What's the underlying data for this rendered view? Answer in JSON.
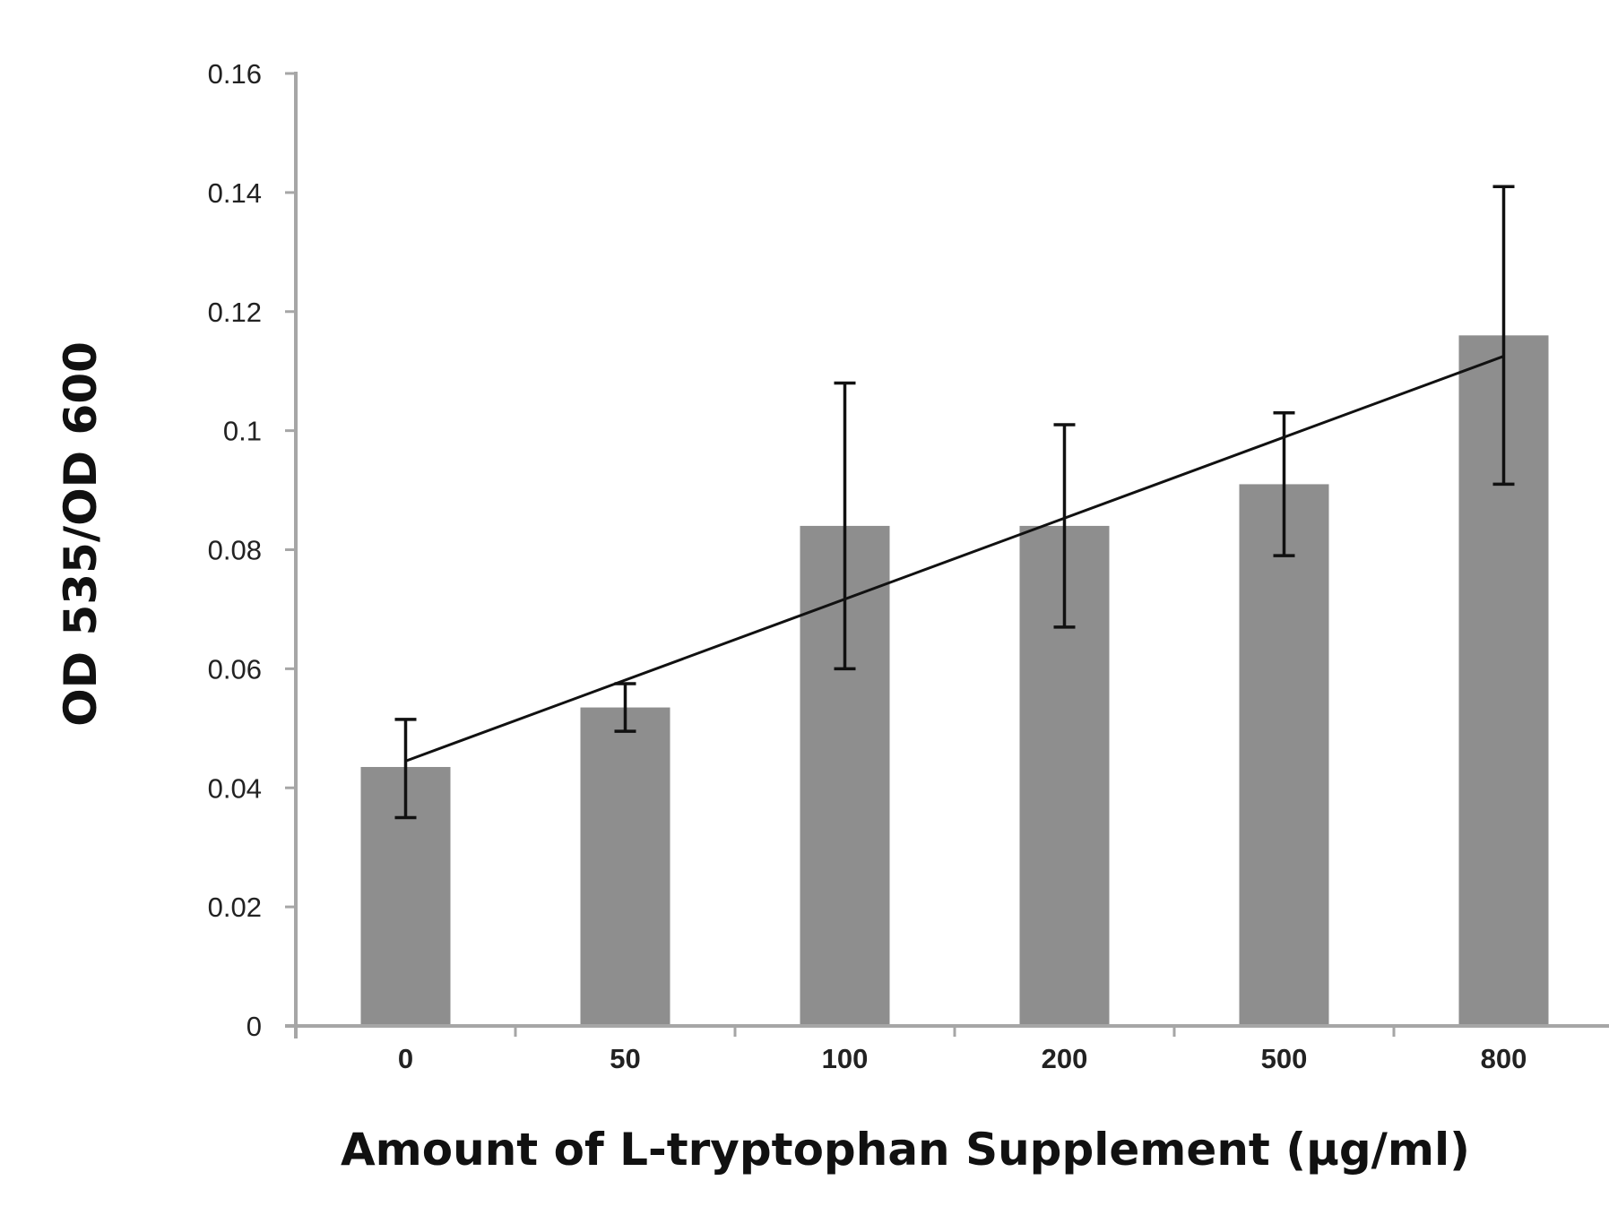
{
  "chart_data": {
    "type": "bar",
    "title": "",
    "xlabel": "Amount of L-tryptophan Supplement (µg/ml)",
    "ylabel": "OD 535/OD 600",
    "categories": [
      "0",
      "50",
      "100",
      "200",
      "500",
      "800"
    ],
    "values": [
      0.0435,
      0.0535,
      0.084,
      0.084,
      0.091,
      0.116
    ],
    "error_bars": [
      {
        "low": 0.035,
        "high": 0.0515
      },
      {
        "low": 0.0495,
        "high": 0.0575
      },
      {
        "low": 0.06,
        "high": 0.108
      },
      {
        "low": 0.067,
        "high": 0.101
      },
      {
        "low": 0.079,
        "high": 0.103
      },
      {
        "low": 0.091,
        "high": 0.141
      }
    ],
    "trendline": {
      "start": 0.0445,
      "end": 0.1125
    },
    "ylim": [
      0,
      0.16
    ],
    "yticks": [
      "0",
      "0.02",
      "0.04",
      "0.06",
      "0.08",
      "0.1",
      "0.12",
      "0.14",
      "0.16"
    ],
    "ytick_values": [
      0,
      0.02,
      0.04,
      0.06,
      0.08,
      0.1,
      0.12,
      0.14,
      0.16
    ],
    "grid": false,
    "legend": "none",
    "colors": {
      "bar": "#8e8e8e",
      "axis": "#a6a6a6",
      "error": "#111111",
      "trend": "#111111"
    }
  }
}
